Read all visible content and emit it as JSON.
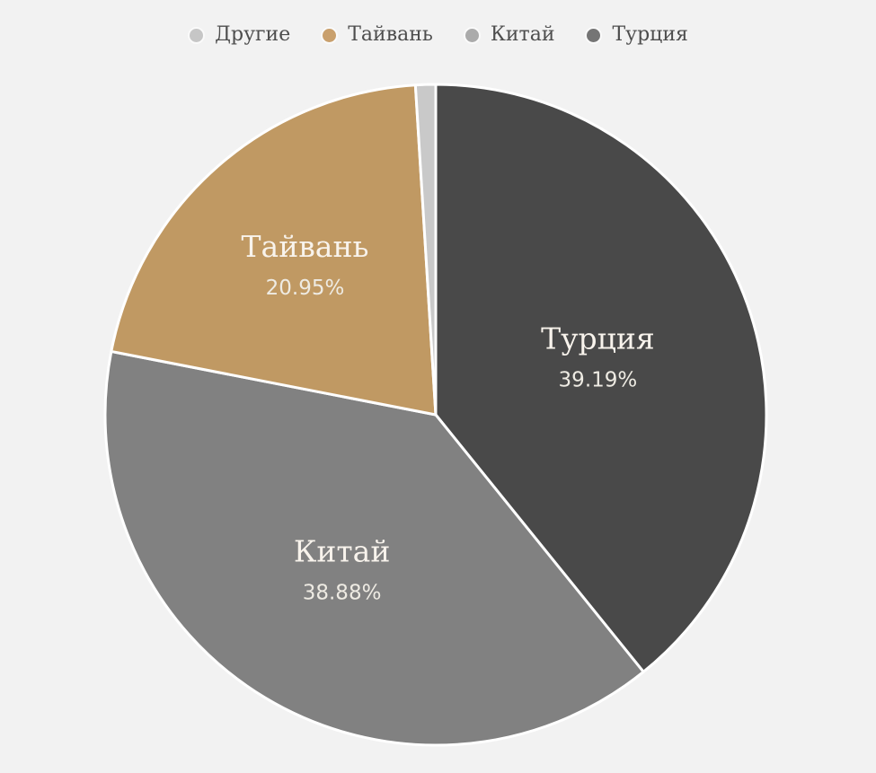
{
  "chart_data": {
    "type": "pie",
    "title": "",
    "start_angle_deg": 0,
    "direction": "clockwise",
    "center": [
      485,
      462
    ],
    "radius": 368,
    "stroke_color": "#ffffff",
    "stroke_width": 3,
    "background_color": "#f2f2f2",
    "slices": [
      {
        "name": "Турция",
        "value": 39.19,
        "pct_label": "39.19%",
        "color": "#494949",
        "show_label": true,
        "label_r": 0.52
      },
      {
        "name": "Китай",
        "value": 38.88,
        "pct_label": "38.88%",
        "color": "#818181",
        "show_label": true,
        "label_r": 0.55
      },
      {
        "name": "Тайвань",
        "value": 20.95,
        "pct_label": "20.95%",
        "color": "#c09963",
        "show_label": true,
        "label_r": 0.6
      },
      {
        "name": "Другие",
        "value": 0.98,
        "pct_label": "0.98%",
        "color": "#c9c9c9",
        "show_label": false,
        "label_r": 0.8
      }
    ],
    "legend": {
      "position": "top",
      "items": [
        {
          "label": "Другие",
          "marker_color": "#c6c6c6"
        },
        {
          "label": "Тайвань",
          "marker_color": "#c9a06d"
        },
        {
          "label": "Китай",
          "marker_color": "#ababab"
        },
        {
          "label": "Турция",
          "marker_color": "#757575"
        }
      ]
    },
    "label_style": {
      "name_color": "#f8f3ec",
      "pct_color": "#eeebe3"
    }
  }
}
